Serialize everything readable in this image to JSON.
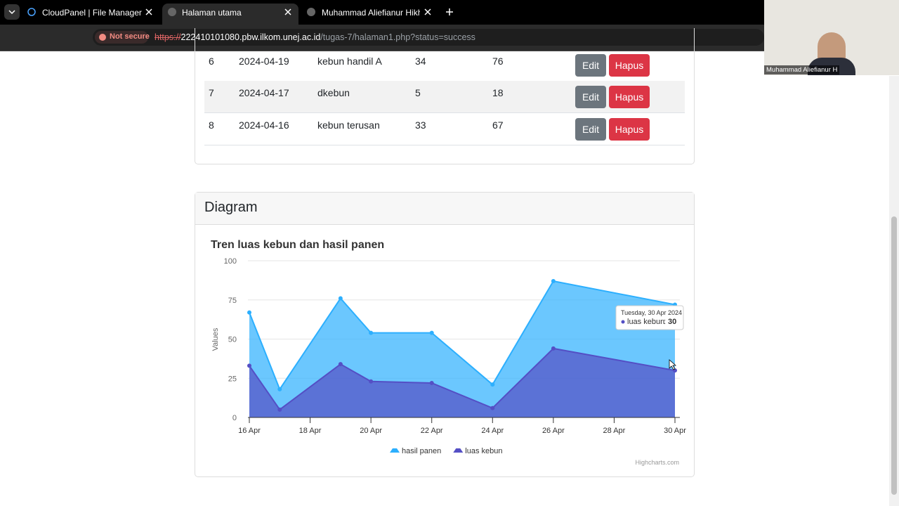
{
  "browser": {
    "tabs": [
      "CloudPanel | File Manager",
      "Halaman utama",
      "Muhammad Aliefianur Hikhma"
    ],
    "not_secure": "Not secure",
    "url": {
      "scheme": "https://",
      "host": "222410101080.pbw.ilkom.unej.ac.id",
      "path": "/tugas-7/halaman1.php?status=success"
    }
  },
  "webcam": {
    "name": "Muhammad Aliefianur H"
  },
  "table": {
    "buttons": [
      "Edit",
      "Hapus"
    ],
    "rows": [
      [
        "6",
        "2024-04-19",
        "kebun handil A",
        "34",
        "76"
      ],
      [
        "7",
        "2024-04-17",
        "dkebun",
        "5",
        "18"
      ],
      [
        "8",
        "2024-04-16",
        "kebun terusan",
        "33",
        "67"
      ]
    ]
  },
  "card": {
    "title": "Diagram"
  },
  "chart_data": {
    "type": "area",
    "title": "Tren luas kebun dan hasil panen",
    "y_label": "Values",
    "x": [
      16,
      17,
      19,
      20,
      22,
      24,
      26,
      30
    ],
    "xlim": [
      16,
      30
    ],
    "xticks": [
      {
        "value": 16,
        "label": "16 Apr"
      },
      {
        "value": 18,
        "label": "18 Apr"
      },
      {
        "value": 20,
        "label": "20 Apr"
      },
      {
        "value": 22,
        "label": "22 Apr"
      },
      {
        "value": 24,
        "label": "24 Apr"
      },
      {
        "value": 26,
        "label": "26 Apr"
      },
      {
        "value": 28,
        "label": "28 Apr"
      },
      {
        "value": 30,
        "label": "30 Apr"
      }
    ],
    "ylim": [
      0,
      100
    ],
    "yticks": [
      0,
      25,
      50,
      75,
      100
    ],
    "grid": true,
    "series": [
      {
        "name": "hasil panen",
        "color": "#2caffe",
        "values": [
          67,
          18,
          76,
          54,
          54,
          21,
          87,
          72
        ]
      },
      {
        "name": "luas kebun",
        "color": "#544fc5",
        "values": [
          33,
          5,
          34,
          23,
          22,
          6,
          44,
          30
        ]
      }
    ],
    "tooltip": {
      "date": "Tuesday, 30 Apr 2024",
      "series": 1,
      "index": 7
    },
    "credits": "Highcharts.com"
  }
}
